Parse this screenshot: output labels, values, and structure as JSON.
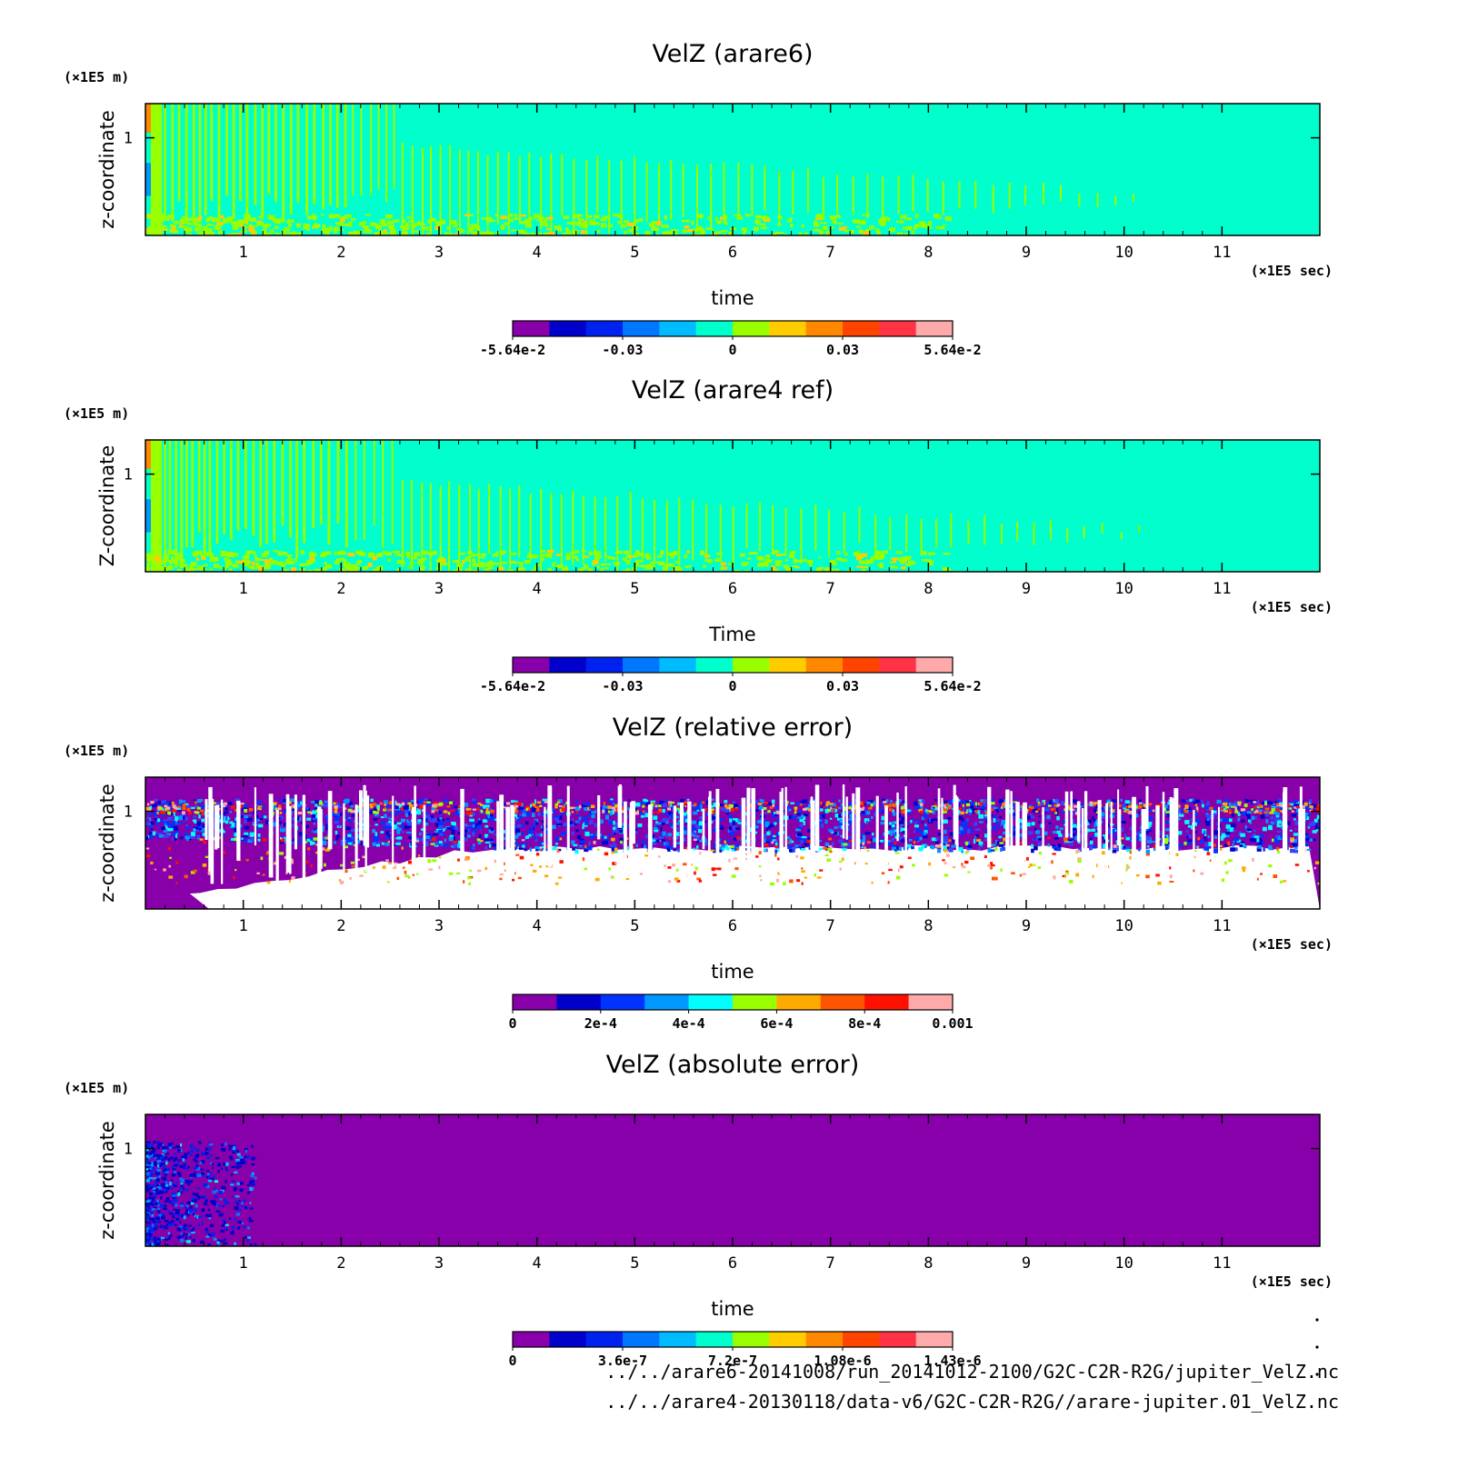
{
  "chart_data": [
    {
      "type": "heatmap",
      "title": "VelZ (arare6)",
      "xlabel": "time",
      "ylabel": "z-coordinate",
      "x_unit_label": "(×1E5 sec)",
      "y_unit_label": "(×1E5 m)",
      "x_ticks": [
        "1",
        "2",
        "3",
        "4",
        "5",
        "6",
        "7",
        "8",
        "9",
        "10",
        "11"
      ],
      "x_range": [
        0,
        12
      ],
      "y_ticks": [
        "1"
      ],
      "y_range": [
        0,
        1.35
      ],
      "pattern": "oscillation",
      "background_color": "#00ffcc",
      "colorbar": {
        "colors": [
          "#8800aa",
          "#0000cc",
          "#0022ee",
          "#0077ff",
          "#00bbff",
          "#00ffcc",
          "#99ff00",
          "#ffcc00",
          "#ff8800",
          "#ff4400",
          "#ff3344",
          "#ffaaaa"
        ],
        "tick_labels": [
          "-5.64e-2",
          "-0.03",
          "0",
          "0.03",
          "5.64e-2"
        ],
        "range": [
          -0.0564,
          0.0564
        ]
      }
    },
    {
      "type": "heatmap",
      "title": "VelZ (arare4 ref)",
      "xlabel": "Time",
      "ylabel": "Z-coordinate",
      "x_unit_label": "(×1E5 sec)",
      "y_unit_label": "(×1E5 m)",
      "x_ticks": [
        "1",
        "2",
        "3",
        "4",
        "5",
        "6",
        "7",
        "8",
        "9",
        "10",
        "11"
      ],
      "x_range": [
        0,
        12
      ],
      "y_ticks": [
        "1"
      ],
      "y_range": [
        0,
        1.35
      ],
      "pattern": "oscillation",
      "background_color": "#00ffcc",
      "colorbar": {
        "colors": [
          "#8800aa",
          "#0000cc",
          "#0022ee",
          "#0077ff",
          "#00bbff",
          "#00ffcc",
          "#99ff00",
          "#ffcc00",
          "#ff8800",
          "#ff4400",
          "#ff3344",
          "#ffaaaa"
        ],
        "tick_labels": [
          "-5.64e-2",
          "-0.03",
          "0",
          "0.03",
          "5.64e-2"
        ],
        "range": [
          -0.0564,
          0.0564
        ]
      }
    },
    {
      "type": "heatmap",
      "title": "VelZ (relative error)",
      "xlabel": "time",
      "ylabel": "z-coordinate",
      "x_unit_label": "(×1E5 sec)",
      "y_unit_label": "(×1E5 m)",
      "x_ticks": [
        "1",
        "2",
        "3",
        "4",
        "5",
        "6",
        "7",
        "8",
        "9",
        "10",
        "11"
      ],
      "x_range": [
        0,
        12
      ],
      "y_ticks": [
        "1"
      ],
      "y_range": [
        0,
        1.35
      ],
      "pattern": "relerror",
      "background_color": "#8800aa",
      "colorbar": {
        "colors": [
          "#8800aa",
          "#0000cc",
          "#0033ff",
          "#0099ff",
          "#00ffff",
          "#99ff00",
          "#ffaa00",
          "#ff5500",
          "#ff1100",
          "#ffaaaa"
        ],
        "tick_labels": [
          "0",
          "2e-4",
          "4e-4",
          "6e-4",
          "8e-4",
          "0.001"
        ],
        "range": [
          0,
          0.001
        ]
      }
    },
    {
      "type": "heatmap",
      "title": "VelZ (absolute error)",
      "xlabel": "time",
      "ylabel": "z-coordinate",
      "x_unit_label": "(×1E5 sec)",
      "y_unit_label": "(×1E5 m)",
      "x_ticks": [
        "1",
        "2",
        "3",
        "4",
        "5",
        "6",
        "7",
        "8",
        "9",
        "10",
        "11"
      ],
      "x_range": [
        0,
        12
      ],
      "y_ticks": [
        "1"
      ],
      "y_range": [
        0,
        1.35
      ],
      "pattern": "abserror",
      "background_color": "#8800aa",
      "colorbar": {
        "colors": [
          "#8800aa",
          "#0000cc",
          "#0022ee",
          "#0077ff",
          "#00bbff",
          "#00ffcc",
          "#99ff00",
          "#ffcc00",
          "#ff8800",
          "#ff4400",
          "#ff3344",
          "#ffaaaa"
        ],
        "tick_labels": [
          "0",
          "3.6e-7",
          "7.2e-7",
          "1.08e-6",
          "1.43e-6"
        ],
        "range": [
          0,
          1.43e-06
        ]
      }
    }
  ],
  "source_files": [
    "../../arare6-20141008/run_20141012-2100/G2C-C2R-R2G/jupiter_VelZ.nc",
    "../../arare4-20130118/data-v6/G2C-C2R-R2G//arare-jupiter.01_VelZ.nc"
  ]
}
